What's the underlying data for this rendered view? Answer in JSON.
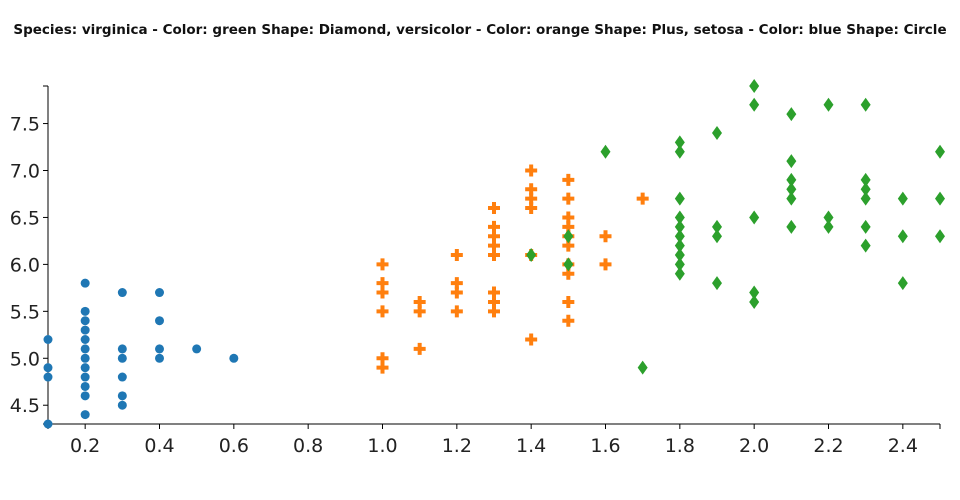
{
  "chart_data": {
    "type": "scatter",
    "title": "Species: virginica - Color: green Shape: Diamond, versicolor - Color: orange Shape: Plus, setosa - Color: blue Shape: Circle",
    "xlabel": "",
    "ylabel": "",
    "xlim": [
      0.1,
      2.5
    ],
    "ylim": [
      4.3,
      7.9
    ],
    "x_ticks": [
      "0.2",
      "0.4",
      "0.6",
      "0.8",
      "1.0",
      "1.2",
      "1.4",
      "1.6",
      "1.8",
      "2.0",
      "2.2",
      "2.4"
    ],
    "y_ticks": [
      "4.5",
      "5.0",
      "5.5",
      "6.0",
      "6.5",
      "7.0",
      "7.5"
    ],
    "grid": false,
    "series": [
      {
        "color": "#1f77b4",
        "marker": "circle",
        "points": [
          [
            0.1,
            5.2
          ],
          [
            0.1,
            4.9
          ],
          [
            0.1,
            4.8
          ],
          [
            0.1,
            4.3
          ],
          [
            0.2,
            5.8
          ],
          [
            0.2,
            5.5
          ],
          [
            0.2,
            5.4
          ],
          [
            0.2,
            5.3
          ],
          [
            0.2,
            5.2
          ],
          [
            0.2,
            5.1
          ],
          [
            0.2,
            5.0
          ],
          [
            0.2,
            4.9
          ],
          [
            0.2,
            4.8
          ],
          [
            0.2,
            4.7
          ],
          [
            0.2,
            4.6
          ],
          [
            0.2,
            4.4
          ],
          [
            0.3,
            5.7
          ],
          [
            0.3,
            5.1
          ],
          [
            0.3,
            5.0
          ],
          [
            0.3,
            4.8
          ],
          [
            0.3,
            4.6
          ],
          [
            0.3,
            4.5
          ],
          [
            0.4,
            5.7
          ],
          [
            0.4,
            5.4
          ],
          [
            0.4,
            5.1
          ],
          [
            0.4,
            5.0
          ],
          [
            0.5,
            5.1
          ],
          [
            0.6,
            5.0
          ]
        ]
      },
      {
        "color": "#ff7f0e",
        "marker": "plus",
        "points": [
          [
            1.0,
            6.0
          ],
          [
            1.0,
            5.8
          ],
          [
            1.0,
            5.7
          ],
          [
            1.0,
            5.5
          ],
          [
            1.0,
            5.0
          ],
          [
            1.0,
            4.9
          ],
          [
            1.1,
            5.6
          ],
          [
            1.1,
            5.5
          ],
          [
            1.1,
            5.1
          ],
          [
            1.2,
            6.1
          ],
          [
            1.2,
            5.8
          ],
          [
            1.2,
            5.7
          ],
          [
            1.2,
            5.5
          ],
          [
            1.3,
            6.6
          ],
          [
            1.3,
            6.4
          ],
          [
            1.3,
            6.3
          ],
          [
            1.3,
            6.2
          ],
          [
            1.3,
            6.1
          ],
          [
            1.3,
            5.7
          ],
          [
            1.3,
            5.6
          ],
          [
            1.3,
            5.5
          ],
          [
            1.4,
            7.0
          ],
          [
            1.4,
            6.8
          ],
          [
            1.4,
            6.7
          ],
          [
            1.4,
            6.6
          ],
          [
            1.4,
            6.1
          ],
          [
            1.4,
            5.2
          ],
          [
            1.5,
            6.9
          ],
          [
            1.5,
            6.7
          ],
          [
            1.5,
            6.5
          ],
          [
            1.5,
            6.4
          ],
          [
            1.5,
            6.3
          ],
          [
            1.5,
            6.2
          ],
          [
            1.5,
            6.0
          ],
          [
            1.5,
            5.9
          ],
          [
            1.5,
            5.6
          ],
          [
            1.5,
            5.4
          ],
          [
            1.6,
            6.3
          ],
          [
            1.6,
            6.0
          ],
          [
            1.7,
            6.7
          ]
        ]
      },
      {
        "color": "#2ca02c",
        "marker": "diamond",
        "points": [
          [
            1.4,
            6.1
          ],
          [
            1.5,
            6.3
          ],
          [
            1.5,
            6.0
          ],
          [
            1.6,
            7.2
          ],
          [
            1.7,
            4.9
          ],
          [
            1.8,
            7.3
          ],
          [
            1.8,
            7.2
          ],
          [
            1.8,
            6.7
          ],
          [
            1.8,
            6.5
          ],
          [
            1.8,
            6.4
          ],
          [
            1.8,
            6.3
          ],
          [
            1.8,
            6.2
          ],
          [
            1.8,
            6.1
          ],
          [
            1.8,
            6.0
          ],
          [
            1.8,
            5.9
          ],
          [
            1.9,
            7.4
          ],
          [
            1.9,
            6.4
          ],
          [
            1.9,
            6.3
          ],
          [
            1.9,
            5.8
          ],
          [
            2.0,
            7.9
          ],
          [
            2.0,
            7.7
          ],
          [
            2.0,
            6.5
          ],
          [
            2.0,
            5.7
          ],
          [
            2.0,
            5.6
          ],
          [
            2.1,
            7.6
          ],
          [
            2.1,
            7.1
          ],
          [
            2.1,
            6.9
          ],
          [
            2.1,
            6.8
          ],
          [
            2.1,
            6.7
          ],
          [
            2.1,
            6.4
          ],
          [
            2.2,
            7.7
          ],
          [
            2.2,
            6.5
          ],
          [
            2.2,
            6.4
          ],
          [
            2.3,
            7.7
          ],
          [
            2.3,
            6.9
          ],
          [
            2.3,
            6.8
          ],
          [
            2.3,
            6.7
          ],
          [
            2.3,
            6.4
          ],
          [
            2.3,
            6.2
          ],
          [
            2.4,
            6.7
          ],
          [
            2.4,
            6.3
          ],
          [
            2.4,
            5.8
          ],
          [
            2.5,
            7.2
          ],
          [
            2.5,
            6.7
          ],
          [
            2.5,
            6.3
          ]
        ]
      }
    ]
  }
}
